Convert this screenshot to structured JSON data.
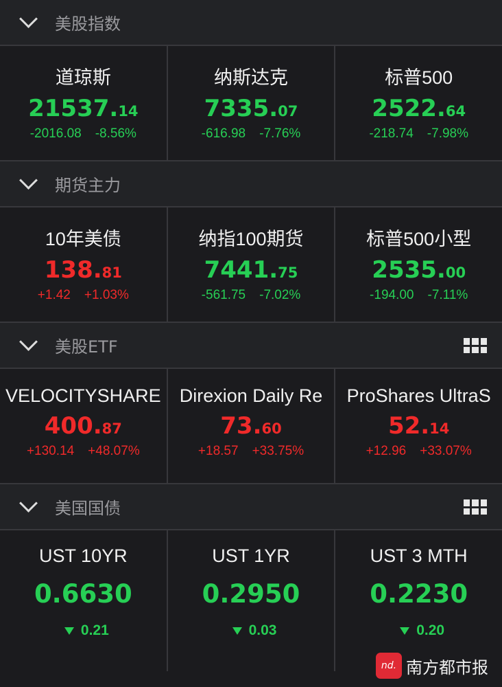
{
  "colors": {
    "up": "#f02a2a",
    "down": "#27cf55"
  },
  "sections": [
    {
      "title": "美股指数",
      "has_grid": false,
      "items": [
        {
          "name": "道琼斯",
          "int": "21537.",
          "dec": "14",
          "change": "-2016.08",
          "pct": "-8.56%",
          "dir": "down"
        },
        {
          "name": "纳斯达克",
          "int": "7335.",
          "dec": "07",
          "change": "-616.98",
          "pct": "-7.76%",
          "dir": "down"
        },
        {
          "name": "标普500",
          "int": "2522.",
          "dec": "64",
          "change": "-218.74",
          "pct": "-7.98%",
          "dir": "down"
        }
      ]
    },
    {
      "title": "期货主力",
      "has_grid": false,
      "items": [
        {
          "name": "10年美债",
          "int": "138.",
          "dec": "81",
          "change": "+1.42",
          "pct": "+1.03%",
          "dir": "up"
        },
        {
          "name": "纳指100期货",
          "int": "7441.",
          "dec": "75",
          "change": "-561.75",
          "pct": "-7.02%",
          "dir": "down"
        },
        {
          "name": "标普500小型",
          "int": "2535.",
          "dec": "00",
          "change": "-194.00",
          "pct": "-7.11%",
          "dir": "down"
        }
      ]
    },
    {
      "title": "美股ETF",
      "has_grid": true,
      "items": [
        {
          "name": "VELOCITYSHARE",
          "int": "400.",
          "dec": "87",
          "change": "+130.14",
          "pct": "+48.07%",
          "dir": "up"
        },
        {
          "name": "Direxion Daily Re",
          "int": "73.",
          "dec": "60",
          "change": "+18.57",
          "pct": "+33.75%",
          "dir": "up"
        },
        {
          "name": "ProShares UltraS",
          "int": "52.",
          "dec": "14",
          "change": "+12.96",
          "pct": "+33.07%",
          "dir": "up"
        }
      ]
    },
    {
      "title": "美国国债",
      "has_grid": true,
      "items": [
        {
          "name": "UST 10YR",
          "value": "0.6630",
          "change": "0.21",
          "dir": "down"
        },
        {
          "name": "UST 1YR",
          "value": "0.2950",
          "change": "0.03",
          "dir": "down"
        },
        {
          "name": "UST 3 MTH",
          "value": "0.2230",
          "change": "0.20",
          "dir": "down"
        }
      ]
    }
  ],
  "watermark": {
    "logo": "nd.",
    "text": "南方都市报"
  }
}
